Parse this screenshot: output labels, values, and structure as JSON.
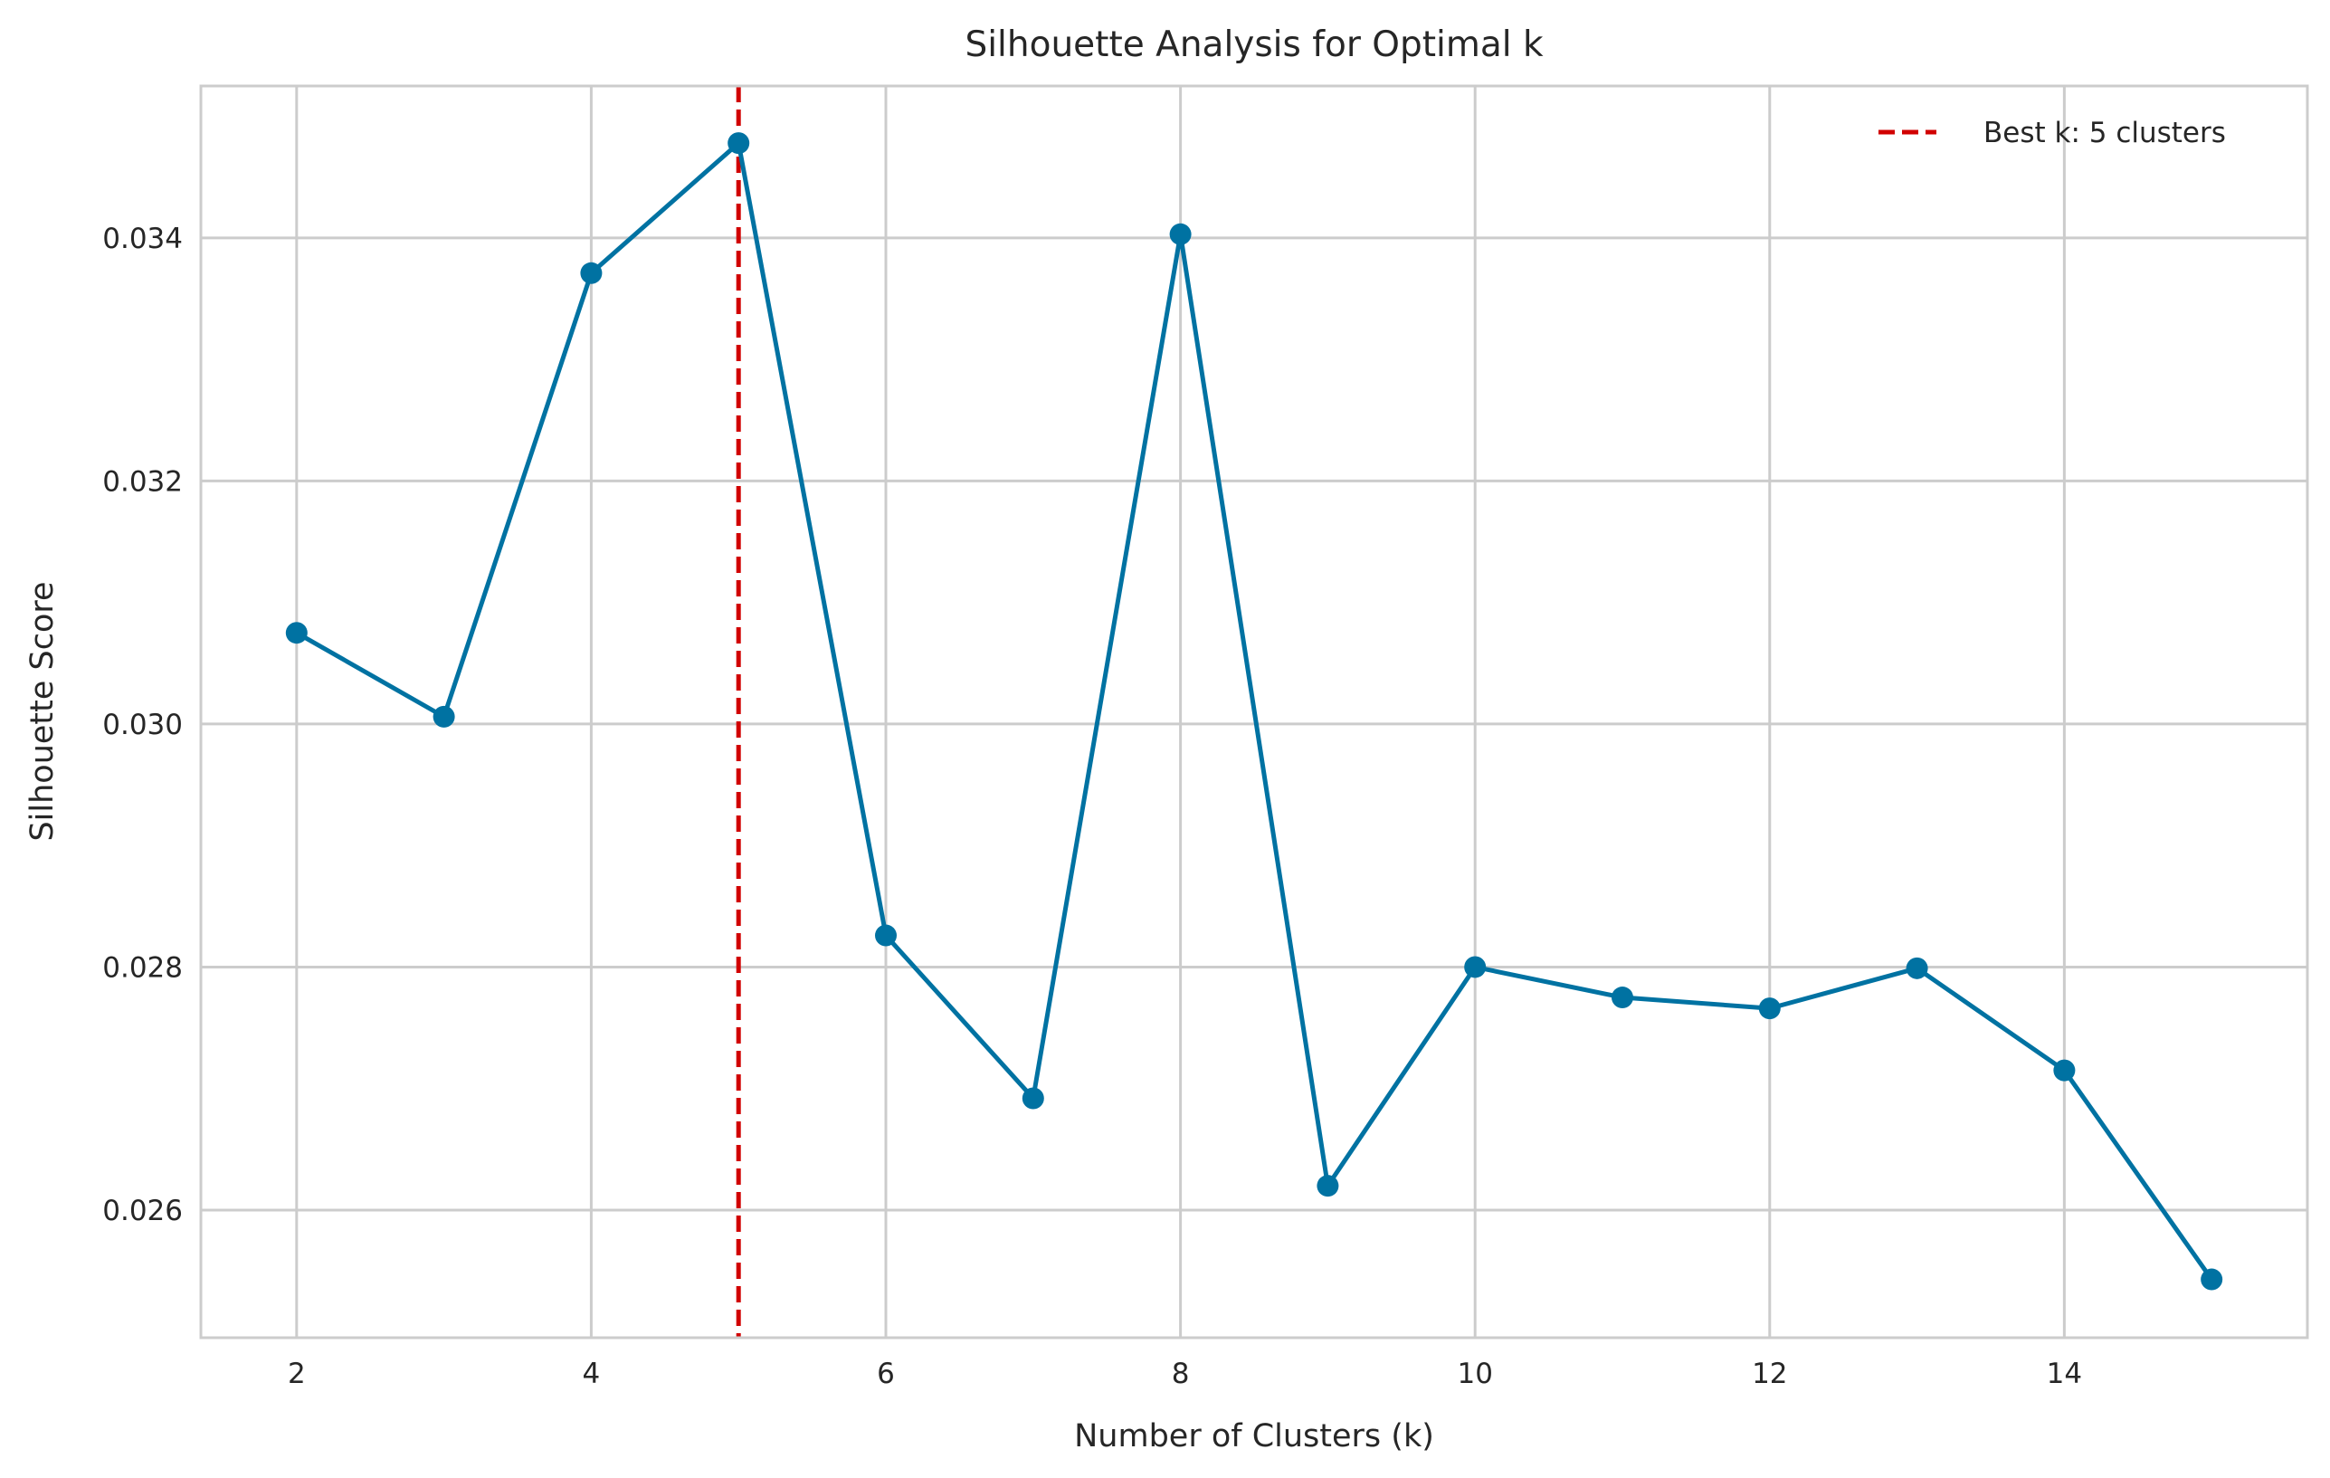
{
  "chart_data": {
    "type": "line",
    "title": "Silhouette Analysis for Optimal k",
    "xlabel": "Number of Clusters (k)",
    "ylabel": "Silhouette Score",
    "xlim": [
      1.35,
      15.65
    ],
    "ylim": [
      0.02495,
      0.03525
    ],
    "xticks": [
      2,
      4,
      6,
      8,
      10,
      12,
      14
    ],
    "yticks": [
      0.026,
      0.028,
      0.03,
      0.032,
      0.034
    ],
    "ytick_labels": [
      "0.026",
      "0.028",
      "0.030",
      "0.032",
      "0.034"
    ],
    "grid": true,
    "legend_position": "top-right",
    "series": [
      {
        "color": "#0072a2",
        "marker": "circle",
        "x": [
          2,
          3,
          4,
          5,
          6,
          7,
          8,
          9,
          10,
          11,
          12,
          13,
          14,
          15
        ],
        "y": [
          0.03075,
          0.03006,
          0.03371,
          0.03478,
          0.02826,
          0.02692,
          0.03403,
          0.0262,
          0.028,
          0.02775,
          0.02766,
          0.02799,
          0.02715,
          0.02543
        ]
      }
    ],
    "reference_lines": [
      {
        "orientation": "vertical",
        "x": 5,
        "style": "dashed",
        "color": "#d10000",
        "label": "Best k: 5 clusters"
      }
    ]
  }
}
